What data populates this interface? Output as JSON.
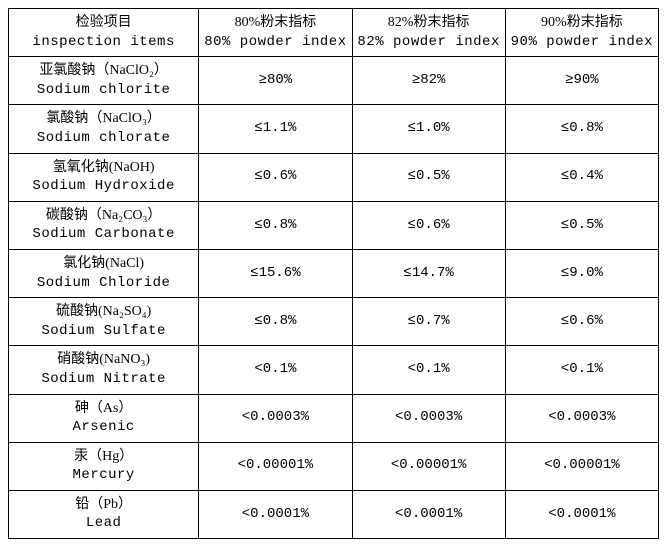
{
  "table": {
    "headers": [
      {
        "cn": "检验项目",
        "en": "inspection items"
      },
      {
        "cn": "80%粉末指标",
        "en": "80% powder index"
      },
      {
        "cn": "82%粉末指标",
        "en": "82% powder index"
      },
      {
        "cn": "90%粉末指标",
        "en": "90% powder index"
      }
    ],
    "rows": [
      {
        "cn": "亚氯酸钠（NaClO₂）",
        "en": "Sodium chlorite",
        "v80": "≥80%",
        "v82": "≥82%",
        "v90": "≥90%"
      },
      {
        "cn": "氯酸钠（NaClO₃）",
        "en": "Sodium chlorate",
        "v80": "≤1.1%",
        "v82": "≤1.0%",
        "v90": "≤0.8%"
      },
      {
        "cn": "氢氧化钠(NaOH)",
        "en": "Sodium Hydroxide",
        "v80": "≤0.6%",
        "v82": "≤0.5%",
        "v90": "≤0.4%"
      },
      {
        "cn": "碳酸钠（Na₂CO₃）",
        "en": "Sodium Carbonate",
        "v80": "≤0.8%",
        "v82": "≤0.6%",
        "v90": "≤0.5%"
      },
      {
        "cn": "氯化钠(NaCl)",
        "en": "Sodium Chloride",
        "v80": "≤15.6%",
        "v82": "≤14.7%",
        "v90": "≤9.0%"
      },
      {
        "cn": "硫酸钠(Na₂SO₄)",
        "en": "Sodium Sulfate",
        "v80": "≤0.8%",
        "v82": "≤0.7%",
        "v90": "≤0.6%"
      },
      {
        "cn": "硝酸钠(NaNO₃)",
        "en": "Sodium Nitrate",
        "v80": "<0.1%",
        "v82": "<0.1%",
        "v90": "<0.1%"
      },
      {
        "cn": "砷（As）",
        "en": "Arsenic",
        "v80": "<0.0003%",
        "v82": "<0.0003%",
        "v90": "<0.0003%"
      },
      {
        "cn": "汞（Hg）",
        "en": "Mercury",
        "v80": "<0.00001%",
        "v82": "<0.00001%",
        "v90": "<0.00001%"
      },
      {
        "cn": "铅（Pb）",
        "en": "Lead",
        "v80": "<0.0001%",
        "v82": "<0.0001%",
        "v90": "<0.0001%"
      }
    ],
    "colors": {
      "border": "#000000",
      "background": "#ffffff",
      "text": "#000000"
    },
    "fontsize": 14,
    "cell_padding": 4
  }
}
